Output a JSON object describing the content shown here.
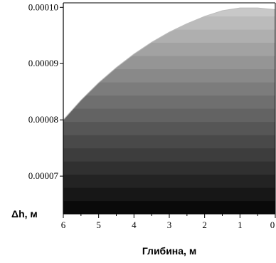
{
  "chart_data": {
    "type": "area",
    "title": "",
    "xlabel": "Глибина, м",
    "ylabel": "Δh, м",
    "x_reversed": true,
    "xlim": [
      6,
      0
    ],
    "ylim": [
      6.33e-05,
      0.0001008
    ],
    "x_ticks": [
      "6",
      "5",
      "4",
      "3",
      "2",
      "1",
      "0"
    ],
    "x_tick_values": [
      6,
      5,
      4,
      3,
      2,
      1,
      0
    ],
    "y_ticks": [
      "0.00007",
      "0.00008",
      "0.00009",
      "0.00010"
    ],
    "y_tick_values": [
      7e-05,
      8e-05,
      9e-05,
      0.0001
    ],
    "fill": "gradient-bands",
    "gradient_colors": [
      "#0a0a0a",
      "#c8c8c8"
    ],
    "series": [
      {
        "x": [
          6,
          5.5,
          5,
          4.5,
          4,
          3.5,
          3,
          2.5,
          2,
          1.5,
          1,
          0.5,
          0
        ],
        "y": [
          8e-05,
          8.35e-05,
          8.66e-05,
          8.93e-05,
          9.17e-05,
          9.38e-05,
          9.56e-05,
          9.71e-05,
          9.84e-05,
          9.94e-05,
          9.99e-05,
          9.99e-05,
          9.96e-05
        ]
      }
    ]
  }
}
